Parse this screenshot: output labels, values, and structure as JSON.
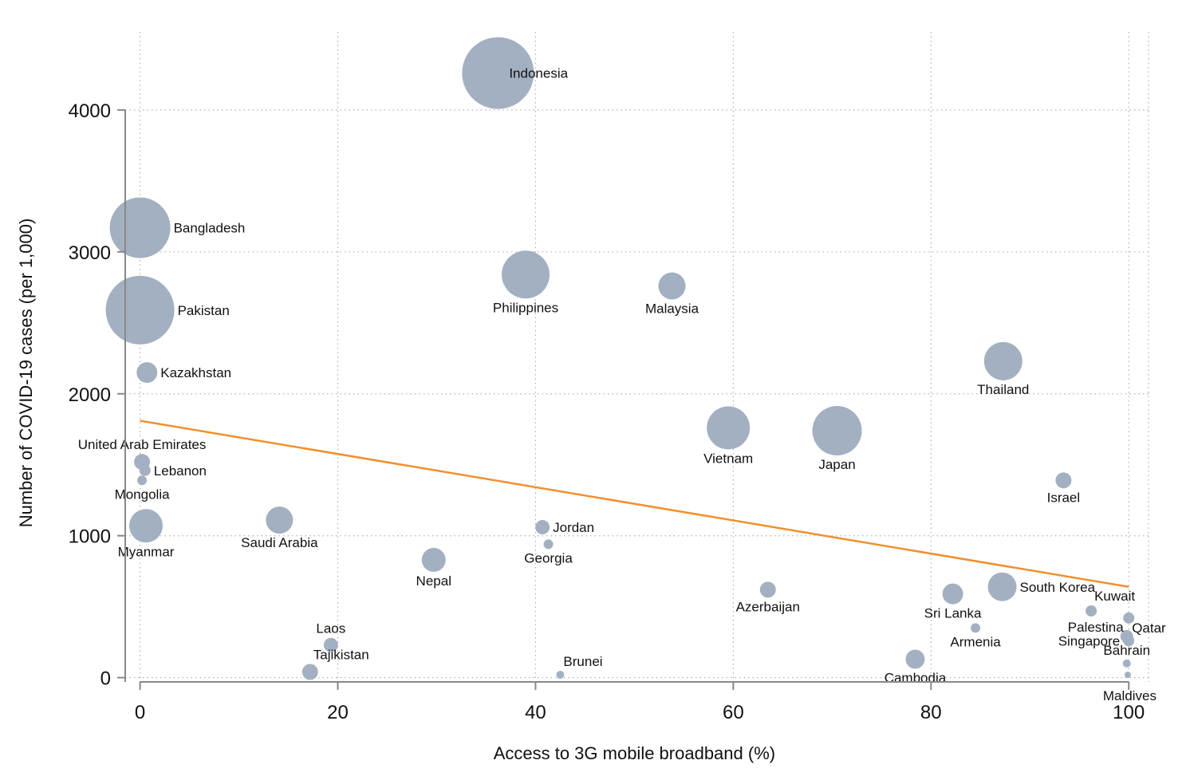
{
  "chart_data": {
    "type": "scatter",
    "title": "",
    "xlabel": "Access to 3G mobile broadband (%)",
    "ylabel": "Number of COVID-19 cases (per 1,000)",
    "xlim": [
      -1.5,
      102
    ],
    "ylim": [
      -30,
      4550
    ],
    "xticks": [
      0,
      20,
      40,
      60,
      80,
      100
    ],
    "yticks": [
      0,
      1000,
      2000,
      3000,
      4000
    ],
    "grid": true,
    "bubble_color": "#a3b0c2",
    "trendline": {
      "color": "#f0902a",
      "x": [
        0,
        100
      ],
      "y": [
        1810,
        640
      ]
    },
    "points": [
      {
        "name": "Indonesia",
        "x": 36.2,
        "y": 4260,
        "size": 45,
        "lx": 2,
        "ly": 0
      },
      {
        "name": "Bangladesh",
        "x": 0,
        "y": 3170,
        "size": 38,
        "lx": 1,
        "ly": 0
      },
      {
        "name": "Pakistan",
        "x": 0,
        "y": 2590,
        "size": 43,
        "lx": 1,
        "ly": 0
      },
      {
        "name": "Philippines",
        "x": 39,
        "y": 2840,
        "size": 30,
        "lx": 0,
        "ly": 1
      },
      {
        "name": "Malaysia",
        "x": 53.8,
        "y": 2760,
        "size": 17,
        "lx": 0,
        "ly": 1
      },
      {
        "name": "Thailand",
        "x": 87.3,
        "y": 2230,
        "size": 24,
        "lx": 0,
        "ly": 1
      },
      {
        "name": "Kazakhstan",
        "x": 0.7,
        "y": 2150,
        "size": 13,
        "lx": 1,
        "ly": 0
      },
      {
        "name": "Vietnam",
        "x": 59.5,
        "y": 1760,
        "size": 27,
        "lx": 0,
        "ly": 1
      },
      {
        "name": "Japan",
        "x": 70.5,
        "y": 1740,
        "size": 31,
        "lx": 0,
        "ly": 1
      },
      {
        "name": "United Arab Emirates",
        "x": 0.2,
        "y": 1520,
        "size": 10,
        "lx": 0,
        "ly": -1
      },
      {
        "name": "Lebanon",
        "x": 0.5,
        "y": 1460,
        "size": 7,
        "lx": 1,
        "ly": 0
      },
      {
        "name": "Mongolia",
        "x": 0.2,
        "y": 1390,
        "size": 6,
        "lx": 0,
        "ly": 1
      },
      {
        "name": "Israel",
        "x": 93.4,
        "y": 1390,
        "size": 10,
        "lx": 0,
        "ly": 1
      },
      {
        "name": "Saudi Arabia",
        "x": 14.1,
        "y": 1110,
        "size": 17,
        "lx": 0,
        "ly": 1
      },
      {
        "name": "Jordan",
        "x": 40.7,
        "y": 1060,
        "size": 9,
        "lx": 1,
        "ly": 0
      },
      {
        "name": "Myanmar",
        "x": 0.6,
        "y": 1070,
        "size": 21,
        "lx": 0,
        "ly": 1
      },
      {
        "name": "Georgia",
        "x": 41.3,
        "y": 940,
        "size": 6,
        "lx": 0,
        "ly": 1
      },
      {
        "name": "Nepal",
        "x": 29.7,
        "y": 830,
        "size": 15,
        "lx": 0,
        "ly": 1
      },
      {
        "name": "South Korea",
        "x": 87.2,
        "y": 640,
        "size": 18,
        "lx": 1,
        "ly": 0
      },
      {
        "name": "Azerbaijan",
        "x": 63.5,
        "y": 620,
        "size": 10,
        "lx": 0,
        "ly": 1
      },
      {
        "name": "Sri Lanka",
        "x": 82.2,
        "y": 590,
        "size": 13,
        "lx": 0,
        "ly": 1
      },
      {
        "name": "Kuwait",
        "x": 96.2,
        "y": 470,
        "size": 7,
        "lx": 1,
        "ly": -1
      },
      {
        "name": "Qatar",
        "x": 100,
        "y": 420,
        "size": 7,
        "lx": 1,
        "ly": 1
      },
      {
        "name": "Palestina",
        "x": 99.8,
        "y": 290,
        "size": 8,
        "lx": -1,
        "ly": -1
      },
      {
        "name": "Singapore",
        "x": 100,
        "y": 260,
        "size": 7,
        "lx": -1,
        "ly": 0
      },
      {
        "name": "Armenia",
        "x": 84.5,
        "y": 350,
        "size": 6,
        "lx": 0,
        "ly": 1
      },
      {
        "name": "Laos",
        "x": 19.3,
        "y": 230,
        "size": 9,
        "lx": 0,
        "ly": -1
      },
      {
        "name": "Bahrain",
        "x": 99.8,
        "y": 100,
        "size": 5,
        "lx": 0,
        "ly": -1
      },
      {
        "name": "Cambodia",
        "x": 78.4,
        "y": 130,
        "size": 12,
        "lx": 0,
        "ly": 1
      },
      {
        "name": "Tajikistan",
        "x": 17.2,
        "y": 40,
        "size": 10,
        "lx": 1,
        "ly": -1
      },
      {
        "name": "Brunei",
        "x": 42.5,
        "y": 20,
        "size": 5,
        "lx": 1,
        "ly": -1
      },
      {
        "name": "Maldives",
        "x": 99.9,
        "y": 20,
        "size": 4,
        "lx": -1,
        "ly": 1
      }
    ]
  }
}
